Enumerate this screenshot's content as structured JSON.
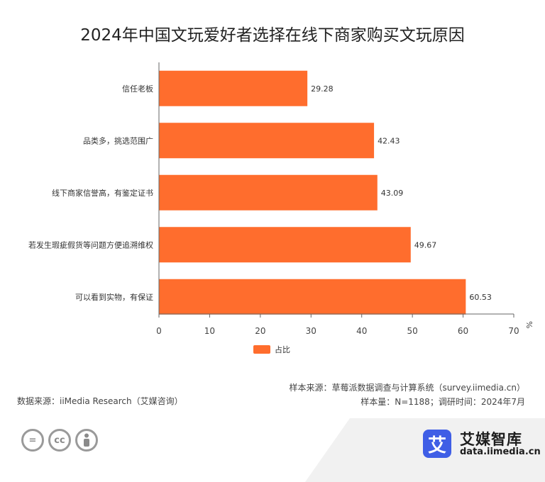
{
  "title": "2024年中国文玩爱好者选择在线下商家购买文玩原因",
  "chart_data": {
    "type": "bar",
    "orientation": "horizontal",
    "categories": [
      "信任老板",
      "品类多，挑选范围广",
      "线下商家信誉高，有鉴定证书",
      "若发生瑕疵假货等问题方便追溯维权",
      "可以看到实物，有保证"
    ],
    "series": [
      {
        "name": "占比",
        "values": [
          29.28,
          42.43,
          43.09,
          49.67,
          60.53
        ],
        "color": "#ff6d2d"
      }
    ],
    "xlim": [
      0,
      70
    ],
    "xticks": [
      0,
      10,
      20,
      30,
      40,
      50,
      60,
      70
    ],
    "unit": "%",
    "legend_position": "bottom",
    "grid": false
  },
  "footer": {
    "source_left": "数据来源：iiMedia Research（艾媒咨询）",
    "source_right_1": "样本来源：草莓派数据调查与计算系统（survey.iimedia.cn）",
    "source_right_2": "样本量：N=1188；调研时间：2024年7月"
  },
  "license_icons": [
    "equals-icon",
    "cc-icon",
    "person-icon"
  ],
  "brand": {
    "logo_char": "艾",
    "name": "艾媒智库",
    "url": "data.iimedia.cn",
    "logo_color": "#3f5ee6"
  }
}
